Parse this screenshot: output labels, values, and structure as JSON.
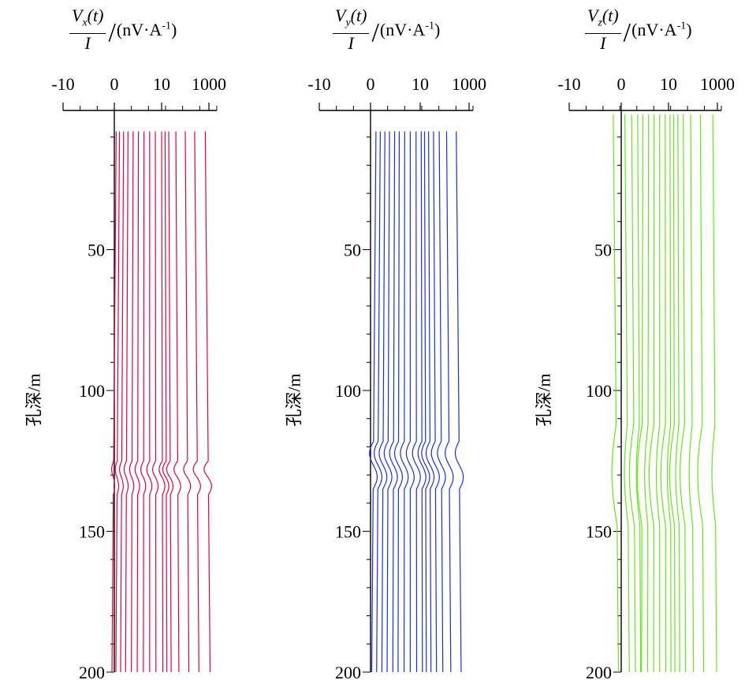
{
  "chart_data": [
    {
      "type": "line",
      "component": "x",
      "numerator_main": "V",
      "numerator_sub": "x",
      "numerator_tail": "(t)",
      "denominator": "I",
      "unit": "(nV·A",
      "unit_sup": "-1",
      "unit_end": ")",
      "ylabel": "孔深/m",
      "x_ticks": [
        "-10",
        "0",
        "10",
        "1000"
      ],
      "x_tick_values": [
        -10,
        0,
        10,
        1000
      ],
      "x_scale": "symlog",
      "y_ticks": [
        "50",
        "100",
        "150",
        "200"
      ],
      "y_tick_values": [
        50,
        100,
        150,
        200
      ],
      "ylim": [
        0,
        200
      ],
      "y_reversed": true,
      "color": "#e8003a",
      "depth_range": [
        8,
        200
      ],
      "series_count": 16,
      "anomaly_depth_range": [
        125,
        137
      ],
      "anomaly_shape": "kink",
      "series_base_values": [
        0.1,
        0.3,
        0.6,
        1,
        1.6,
        2.4,
        3.5,
        5,
        7,
        10,
        14,
        20,
        40,
        100,
        250,
        700
      ]
    },
    {
      "type": "line",
      "component": "y",
      "numerator_main": "V",
      "numerator_sub": "y",
      "numerator_tail": "(t)",
      "denominator": "I",
      "unit": "(nV·A",
      "unit_sup": "-1",
      "unit_end": ")",
      "ylabel": "孔深/m",
      "x_ticks": [
        "-10",
        "0",
        "10",
        "1000"
      ],
      "x_tick_values": [
        -10,
        0,
        10,
        1000
      ],
      "x_scale": "symlog",
      "y_ticks": [
        "50",
        "100",
        "150",
        "200"
      ],
      "y_tick_values": [
        50,
        100,
        150,
        200
      ],
      "ylim": [
        0,
        200
      ],
      "y_reversed": true,
      "color": "#1a2ee6",
      "depth_range": [
        8,
        200
      ],
      "series_count": 16,
      "anomaly_depth_range": [
        118,
        135
      ],
      "anomaly_shape": "zigzag",
      "series_base_values": [
        0.3,
        0.6,
        1,
        1.5,
        2.2,
        3,
        4.2,
        5.8,
        8,
        11,
        15,
        22,
        35,
        60,
        120,
        300
      ]
    },
    {
      "type": "line",
      "component": "z",
      "numerator_main": "V",
      "numerator_sub": "z",
      "numerator_tail": "(t)",
      "denominator": "I",
      "unit": "(nV·A",
      "unit_sup": "-1",
      "unit_end": ")",
      "ylabel": "孔深/m",
      "x_ticks": [
        "-10",
        "0",
        "10",
        "1000"
      ],
      "x_tick_values": [
        -10,
        0,
        10,
        1000
      ],
      "x_scale": "symlog",
      "y_ticks": [
        "50",
        "100",
        "150",
        "200"
      ],
      "y_tick_values": [
        50,
        100,
        150,
        200
      ],
      "ylim": [
        0,
        200
      ],
      "y_reversed": true,
      "color": "#66e61a",
      "depth_range": [
        2,
        200
      ],
      "series_count": 16,
      "anomaly_depth_range": [
        112,
        148
      ],
      "anomaly_shape": "bulge",
      "series_base_values": [
        -0.5,
        0.2,
        0.7,
        1.3,
        2,
        3,
        4.3,
        6,
        8.3,
        11.5,
        16,
        24,
        40,
        80,
        200,
        650
      ]
    }
  ]
}
